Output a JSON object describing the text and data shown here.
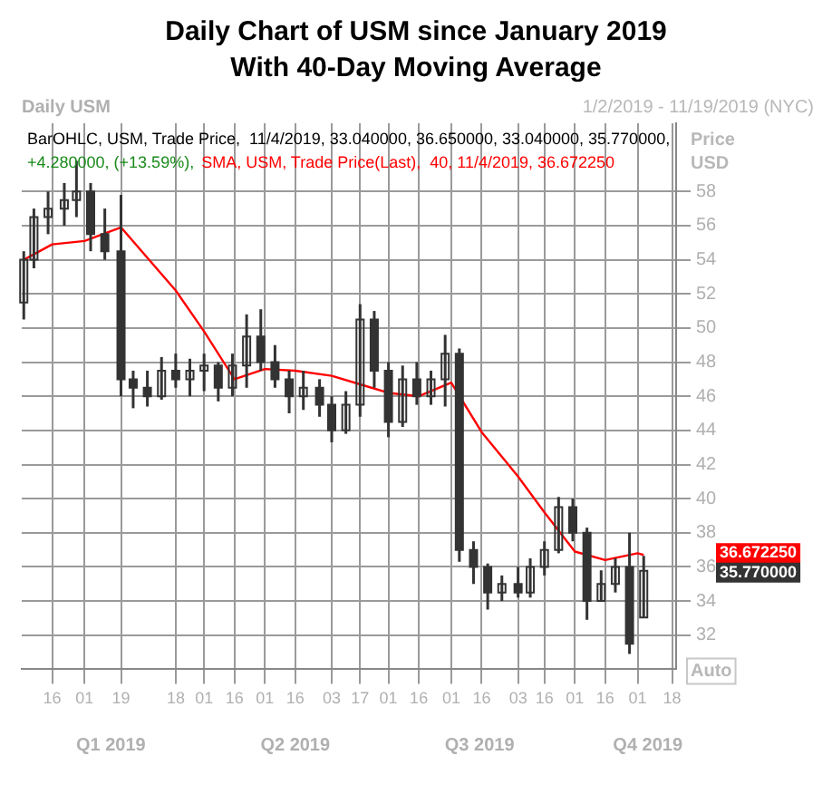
{
  "chart_data": {
    "type": "candlestick",
    "title": "Daily Chart of USM since January 2019",
    "subtitle": "With 40-Day Moving Average",
    "ylabel": "Price USD",
    "color": "#333333",
    "x": [
      "2019-01-02",
      "2019-01-07",
      "2019-01-14",
      "2019-01-22",
      "2019-01-28",
      "2019-02-04",
      "2019-02-11",
      "2019-02-19",
      "2019-02-25",
      "2019-03-04",
      "2019-03-11",
      "2019-03-18",
      "2019-03-25",
      "2019-04-01",
      "2019-04-08",
      "2019-04-15",
      "2019-04-22",
      "2019-04-29",
      "2019-05-06",
      "2019-05-13",
      "2019-05-20",
      "2019-05-28",
      "2019-06-03",
      "2019-06-10",
      "2019-06-17",
      "2019-06-24",
      "2019-07-01",
      "2019-07-08",
      "2019-07-15",
      "2019-07-22",
      "2019-07-29",
      "2019-08-05",
      "2019-08-12",
      "2019-08-19",
      "2019-08-26",
      "2019-09-03",
      "2019-09-09",
      "2019-09-16",
      "2019-09-23",
      "2019-09-30",
      "2019-10-07",
      "2019-10-14",
      "2019-10-21",
      "2019-10-28",
      "2019-11-04"
    ],
    "ohlc": [
      [
        51.5,
        54.5,
        50.5,
        54
      ],
      [
        54,
        57,
        53.5,
        56.5
      ],
      [
        56.5,
        58,
        55.5,
        57
      ],
      [
        57,
        58.5,
        56,
        57.5
      ],
      [
        57.5,
        59.8,
        56.5,
        58
      ],
      [
        58,
        58.5,
        54.5,
        55.5
      ],
      [
        55.5,
        57,
        54,
        54.5
      ],
      [
        54.5,
        57.8,
        46,
        47
      ],
      [
        47,
        47.5,
        45.3,
        46.5
      ],
      [
        46.5,
        47.5,
        45.4,
        46
      ],
      [
        46,
        48.3,
        45.8,
        47.5
      ],
      [
        47.5,
        48.5,
        46.5,
        47
      ],
      [
        47,
        48.2,
        46,
        47.5
      ],
      [
        47.5,
        48.5,
        46.3,
        47.8
      ],
      [
        47.8,
        48,
        45.7,
        46.5
      ],
      [
        46.5,
        48.5,
        46,
        47.8
      ],
      [
        47.8,
        50.8,
        46.5,
        49.5
      ],
      [
        49.5,
        51.1,
        47.5,
        48
      ],
      [
        48,
        49,
        46.5,
        47
      ],
      [
        47,
        47.5,
        45,
        46
      ],
      [
        46,
        47.5,
        45.2,
        46.5
      ],
      [
        46.5,
        47,
        44.8,
        45.5
      ],
      [
        45.5,
        46,
        43.3,
        44
      ],
      [
        44,
        46.3,
        43.8,
        45.5
      ],
      [
        45.5,
        51.4,
        44.8,
        50.5
      ],
      [
        50.5,
        51,
        46.5,
        47.5
      ],
      [
        47.5,
        48,
        43.6,
        44.5
      ],
      [
        44.5,
        47.8,
        44.2,
        47
      ],
      [
        47,
        48,
        45.5,
        46
      ],
      [
        46,
        47.5,
        45.5,
        47
      ],
      [
        47,
        49.6,
        45.4,
        48.5
      ],
      [
        48.5,
        48.8,
        36.3,
        37
      ],
      [
        37,
        37.5,
        35,
        36
      ],
      [
        36,
        36.2,
        33.5,
        34.5
      ],
      [
        34.5,
        35.5,
        34,
        35
      ],
      [
        35,
        36,
        34.2,
        34.5
      ],
      [
        34.5,
        36.5,
        34.2,
        36
      ],
      [
        36,
        37.5,
        35.5,
        37
      ],
      [
        37,
        40.1,
        36.8,
        39.5
      ],
      [
        39.5,
        40,
        37.5,
        38
      ],
      [
        38,
        38.3,
        32.9,
        34
      ],
      [
        34,
        35.8,
        34,
        35
      ],
      [
        35,
        36.5,
        34.5,
        36
      ],
      [
        36,
        38,
        30.9,
        31.49
      ],
      [
        33.04,
        36.65,
        33.04,
        35.77
      ]
    ],
    "series": [
      {
        "type": "line",
        "color": "#ff0000",
        "x": [
          "2019-01-02",
          "2019-01-16",
          "2019-02-01",
          "2019-02-19",
          "2019-03-18",
          "2019-04-01",
          "2019-04-16",
          "2019-05-01",
          "2019-05-16",
          "2019-06-03",
          "2019-06-17",
          "2019-07-01",
          "2019-07-16",
          "2019-08-01",
          "2019-08-16",
          "2019-09-03",
          "2019-09-16",
          "2019-10-01",
          "2019-10-16",
          "2019-11-01",
          "2019-11-04"
        ],
        "values": [
          54.0,
          54.9,
          55.1,
          55.9,
          52.2,
          49.8,
          47.0,
          47.6,
          47.5,
          47.2,
          46.7,
          46.2,
          46.0,
          46.8,
          43.9,
          41.3,
          39.2,
          36.9,
          36.4,
          36.8,
          36.7
        ]
      }
    ],
    "marker": "none",
    "line_style": "solid",
    "grid": true,
    "xlim": [
      "2019-01-01",
      "2019-11-20"
    ],
    "xticks": [
      {
        "value": "2019-01-16",
        "label": "16"
      },
      {
        "value": "2019-02-01",
        "label": "01"
      },
      {
        "value": "2019-02-19",
        "label": "19"
      },
      {
        "value": "2019-03-18",
        "label": "18"
      },
      {
        "value": "2019-04-01",
        "label": "01"
      },
      {
        "value": "2019-04-16",
        "label": "16"
      },
      {
        "value": "2019-05-01",
        "label": "01"
      },
      {
        "value": "2019-05-16",
        "label": "16"
      },
      {
        "value": "2019-06-03",
        "label": "03"
      },
      {
        "value": "2019-06-17",
        "label": "17"
      },
      {
        "value": "2019-07-01",
        "label": "01"
      },
      {
        "value": "2019-07-16",
        "label": "16"
      },
      {
        "value": "2019-08-01",
        "label": "01"
      },
      {
        "value": "2019-08-16",
        "label": "16"
      },
      {
        "value": "2019-09-03",
        "label": "03"
      },
      {
        "value": "2019-09-16",
        "label": "16"
      },
      {
        "value": "2019-10-01",
        "label": "01"
      },
      {
        "value": "2019-10-16",
        "label": "16"
      },
      {
        "value": "2019-11-01",
        "label": "01"
      },
      {
        "value": "2019-11-18",
        "label": "18"
      }
    ],
    "x2lim": [
      "2019-01-01",
      "2019-11-20"
    ],
    "x2ticks": [
      {
        "value": "2019-02-14",
        "label": "Q1 2019"
      },
      {
        "value": "2019-05-16",
        "label": "Q2 2019"
      },
      {
        "value": "2019-08-15",
        "label": "Q3 2019"
      },
      {
        "value": "2019-11-06",
        "label": "Q4 2019"
      }
    ],
    "ylim": [
      30,
      62
    ],
    "yticks": [
      32,
      34,
      36,
      38,
      40,
      42,
      44,
      46,
      48,
      50,
      52,
      54,
      56,
      58
    ],
    "annotations": [
      "Daily USM",
      "1/2/2019 - 11/19/2019 (NYC)",
      "BarOHLC, USM, Trade Price,  11/4/2019, 33.040000, 36.650000, 33.040000, 35.770000,",
      "+4.280000, (+13.59%),",
      "SMA, USM, Trade Price(Last),  40, 11/4/2019, 36.672250",
      "Auto",
      "36.672250",
      "35.770000"
    ]
  }
}
